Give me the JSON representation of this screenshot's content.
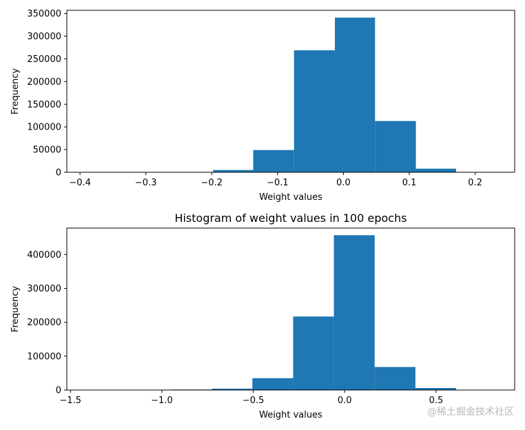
{
  "chart_data": [
    {
      "type": "bar",
      "title": "",
      "xlabel": "Weight values",
      "ylabel": "Frequency",
      "bar_color": "#1f77b4",
      "xlim": [
        -0.42,
        0.26
      ],
      "ylim": [
        0,
        357000
      ],
      "xticks": [
        -0.4,
        -0.3,
        -0.2,
        -0.1,
        0.0,
        0.1,
        0.2
      ],
      "xtick_labels": [
        "−0.4",
        "−0.3",
        "−0.2",
        "−0.1",
        "0.0",
        "0.1",
        "0.2"
      ],
      "yticks": [
        0,
        50000,
        100000,
        150000,
        200000,
        250000,
        300000,
        350000
      ],
      "ytick_labels": [
        "0",
        "50000",
        "100000",
        "150000",
        "200000",
        "250000",
        "300000",
        "350000"
      ],
      "bins": [
        {
          "x0": -0.198,
          "x1": -0.137,
          "count": 5000
        },
        {
          "x0": -0.137,
          "x1": -0.075,
          "count": 49000
        },
        {
          "x0": -0.075,
          "x1": -0.013,
          "count": 269000
        },
        {
          "x0": -0.013,
          "x1": 0.048,
          "count": 341000
        },
        {
          "x0": 0.048,
          "x1": 0.11,
          "count": 113000
        },
        {
          "x0": 0.11,
          "x1": 0.171,
          "count": 8000
        }
      ]
    },
    {
      "type": "bar",
      "title": "Histogram of weight values in 100 epochs",
      "xlabel": "Weight values",
      "ylabel": "Frequency",
      "bar_color": "#1f77b4",
      "xlim": [
        -1.52,
        0.93
      ],
      "ylim": [
        0,
        478000
      ],
      "xticks": [
        -1.5,
        -1.0,
        -0.5,
        0.0,
        0.5
      ],
      "xtick_labels": [
        "−1.5",
        "−1.0",
        "−0.5",
        "0.0",
        "0.5"
      ],
      "yticks": [
        0,
        100000,
        200000,
        300000,
        400000
      ],
      "ytick_labels": [
        "0",
        "100000",
        "200000",
        "300000",
        "400000"
      ],
      "bins": [
        {
          "x0": -0.95,
          "x1": -0.727,
          "count": 1500
        },
        {
          "x0": -0.727,
          "x1": -0.505,
          "count": 4000
        },
        {
          "x0": -0.505,
          "x1": -0.282,
          "count": 35000
        },
        {
          "x0": -0.282,
          "x1": -0.059,
          "count": 217000
        },
        {
          "x0": -0.059,
          "x1": 0.164,
          "count": 457000
        },
        {
          "x0": 0.164,
          "x1": 0.387,
          "count": 68000
        },
        {
          "x0": 0.387,
          "x1": 0.61,
          "count": 6000
        }
      ]
    }
  ],
  "watermark": "@稀土掘金技术社区"
}
